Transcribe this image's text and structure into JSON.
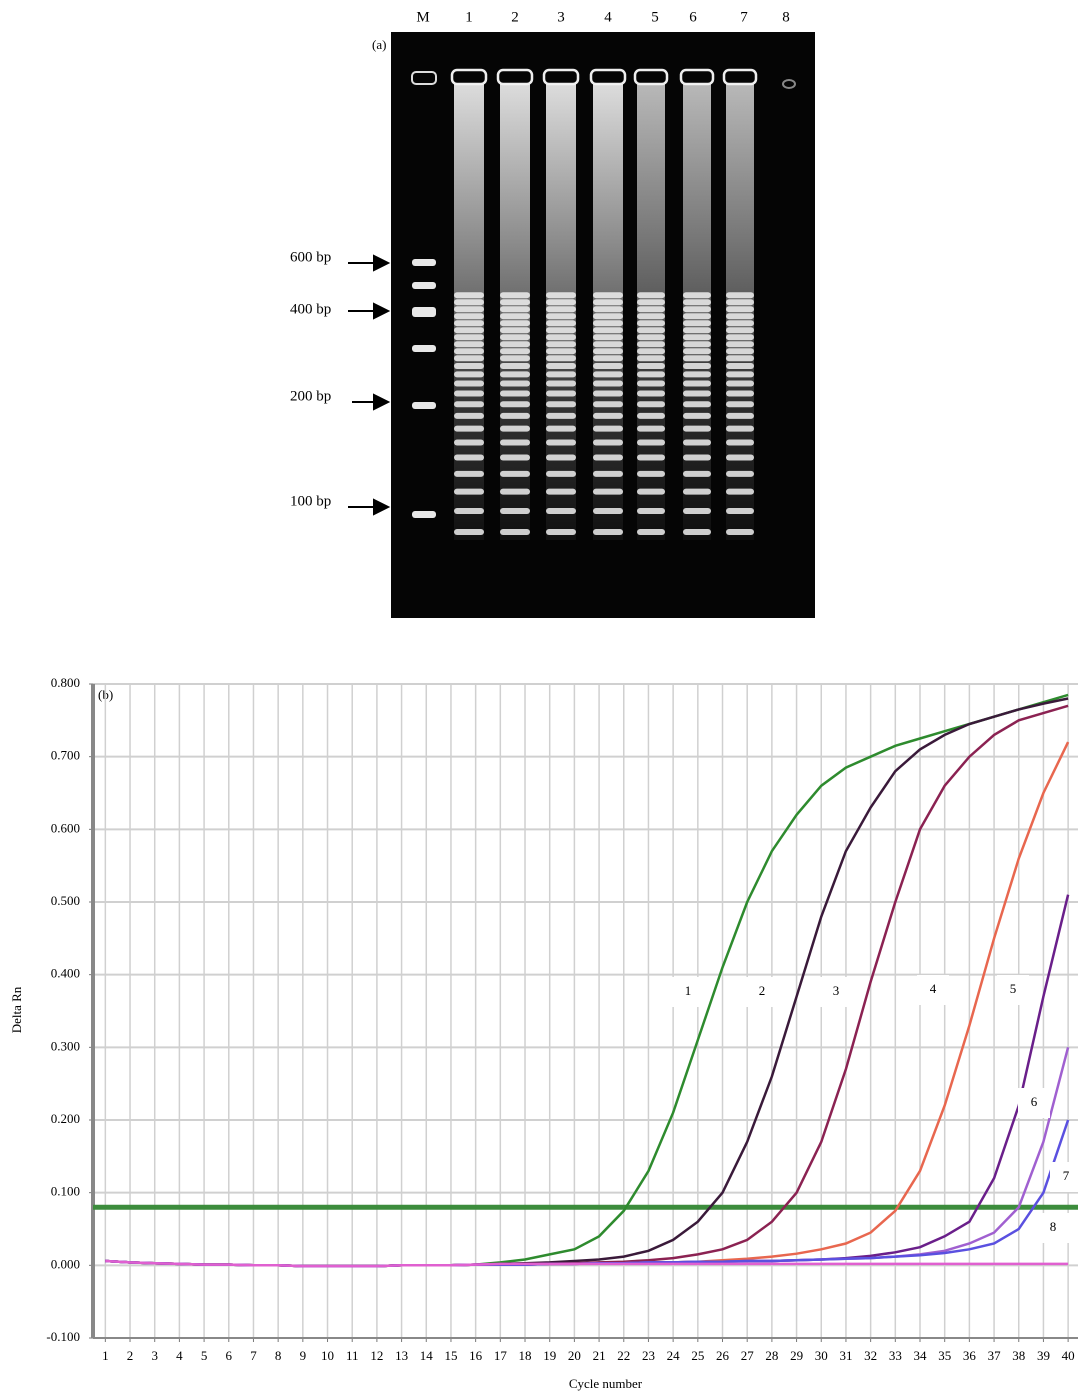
{
  "gel": {
    "panel_label": "(a)",
    "lanes": [
      "M",
      "1",
      "2",
      "3",
      "4",
      "5",
      "6",
      "7",
      "8"
    ],
    "markers": [
      "600 bp",
      "400 bp",
      "200 bp",
      "100 bp"
    ]
  },
  "chart_data": {
    "type": "line",
    "panel_label": "(b)",
    "x_label": "Cycle number",
    "y_label": "Delta Rn",
    "x": [
      1,
      2,
      3,
      4,
      5,
      6,
      7,
      8,
      9,
      10,
      11,
      12,
      13,
      14,
      15,
      16,
      17,
      18,
      19,
      20,
      21,
      22,
      23,
      24,
      25,
      26,
      27,
      28,
      29,
      30,
      31,
      32,
      33,
      34,
      35,
      36,
      37,
      38,
      39,
      40
    ],
    "xlim": [
      0.5,
      40.4
    ],
    "xticks": [
      1,
      2,
      3,
      4,
      5,
      6,
      7,
      8,
      9,
      10,
      11,
      12,
      13,
      14,
      15,
      16,
      17,
      18,
      19,
      20,
      21,
      22,
      23,
      24,
      25,
      26,
      27,
      28,
      29,
      30,
      31,
      32,
      33,
      34,
      35,
      36,
      37,
      38,
      39,
      40
    ],
    "ylim": [
      -0.1,
      0.8
    ],
    "yticks": [
      {
        "value": -0.1,
        "label": "-0.100"
      },
      {
        "value": 0,
        "label": "0.000"
      },
      {
        "value": 0.1,
        "label": "0.100"
      },
      {
        "value": 0.2,
        "label": "0.200"
      },
      {
        "value": 0.3,
        "label": "0.300"
      },
      {
        "value": 0.4,
        "label": "0.400"
      },
      {
        "value": 0.5,
        "label": "0.500"
      },
      {
        "value": 0.6,
        "label": "0.600"
      },
      {
        "value": 0.7,
        "label": "0.700"
      },
      {
        "value": 0.8,
        "label": "0.800"
      }
    ],
    "grid": true,
    "threshold": 0.08,
    "threshold_color": "#3c8c3c",
    "series": [
      {
        "name": "1",
        "color": "#2e8b2e",
        "values": [
          0.006,
          0.004,
          0.003,
          0.002,
          0.001,
          0.001,
          0,
          0,
          -0.001,
          -0.001,
          -0.001,
          -0.001,
          0,
          0,
          0,
          0.001,
          0.004,
          0.008,
          0.015,
          0.022,
          0.04,
          0.075,
          0.13,
          0.21,
          0.31,
          0.41,
          0.5,
          0.57,
          0.62,
          0.66,
          0.685,
          0.7,
          0.715,
          0.725,
          0.735,
          0.745,
          0.755,
          0.765,
          0.775,
          0.785
        ]
      },
      {
        "name": "2",
        "color": "#3a1a3a",
        "values": [
          0.006,
          0.004,
          0.003,
          0.002,
          0.001,
          0.001,
          0,
          0,
          -0.001,
          -0.001,
          -0.001,
          -0.001,
          0,
          0,
          0,
          0.001,
          0.002,
          0.003,
          0.004,
          0.006,
          0.008,
          0.012,
          0.02,
          0.035,
          0.06,
          0.1,
          0.17,
          0.26,
          0.37,
          0.48,
          0.57,
          0.63,
          0.68,
          0.71,
          0.73,
          0.745,
          0.755,
          0.765,
          0.773,
          0.78
        ]
      },
      {
        "name": "3",
        "color": "#8b2252",
        "values": [
          0.006,
          0.004,
          0.003,
          0.002,
          0.001,
          0.001,
          0,
          0,
          -0.001,
          -0.001,
          -0.001,
          -0.001,
          0,
          0,
          0,
          0.001,
          0.001,
          0.002,
          0.002,
          0.003,
          0.004,
          0.005,
          0.007,
          0.01,
          0.015,
          0.022,
          0.035,
          0.06,
          0.1,
          0.17,
          0.27,
          0.39,
          0.5,
          0.6,
          0.66,
          0.7,
          0.73,
          0.75,
          0.76,
          0.77
        ]
      },
      {
        "name": "4",
        "color": "#e8674f",
        "values": [
          0.006,
          0.004,
          0.003,
          0.002,
          0.001,
          0.001,
          0,
          0,
          -0.001,
          -0.001,
          -0.001,
          -0.001,
          0,
          0,
          0,
          0.001,
          0.001,
          0.001,
          0.002,
          0.002,
          0.003,
          0.003,
          0.004,
          0.004,
          0.005,
          0.007,
          0.009,
          0.012,
          0.016,
          0.022,
          0.03,
          0.045,
          0.075,
          0.13,
          0.22,
          0.33,
          0.45,
          0.56,
          0.65,
          0.72
        ]
      },
      {
        "name": "5",
        "color": "#6a1f8a",
        "values": [
          0.006,
          0.004,
          0.003,
          0.002,
          0.001,
          0.001,
          0,
          0,
          -0.001,
          -0.001,
          -0.001,
          -0.001,
          0,
          0,
          0,
          0.001,
          0.001,
          0.001,
          0.002,
          0.002,
          0.003,
          0.003,
          0.004,
          0.004,
          0.005,
          0.005,
          0.006,
          0.006,
          0.007,
          0.008,
          0.01,
          0.013,
          0.018,
          0.025,
          0.04,
          0.06,
          0.12,
          0.22,
          0.37,
          0.51
        ]
      },
      {
        "name": "6",
        "color": "#a060d0",
        "values": [
          0.006,
          0.004,
          0.003,
          0.002,
          0.001,
          0.001,
          0,
          0,
          -0.001,
          -0.001,
          -0.001,
          -0.001,
          0,
          0,
          0,
          0.001,
          0.001,
          0.001,
          0.002,
          0.002,
          0.003,
          0.003,
          0.004,
          0.004,
          0.005,
          0.005,
          0.006,
          0.006,
          0.007,
          0.008,
          0.009,
          0.01,
          0.012,
          0.015,
          0.02,
          0.03,
          0.045,
          0.08,
          0.17,
          0.3
        ]
      },
      {
        "name": "7",
        "color": "#5a50e0",
        "values": [
          0.006,
          0.004,
          0.003,
          0.002,
          0.001,
          0.001,
          0,
          0,
          -0.001,
          -0.001,
          -0.001,
          -0.001,
          0,
          0,
          0,
          0.001,
          0.001,
          0.001,
          0.002,
          0.002,
          0.003,
          0.003,
          0.004,
          0.004,
          0.005,
          0.005,
          0.006,
          0.006,
          0.007,
          0.008,
          0.009,
          0.01,
          0.012,
          0.014,
          0.017,
          0.022,
          0.03,
          0.05,
          0.1,
          0.2
        ]
      },
      {
        "name": "8",
        "color": "#e060d0",
        "values": [
          0.006,
          0.004,
          0.003,
          0.002,
          0.001,
          0.001,
          0,
          0,
          -0.001,
          -0.001,
          -0.001,
          -0.001,
          0,
          0,
          0,
          0.001,
          0.002,
          0.002,
          0.002,
          0.002,
          0.002,
          0.002,
          0.002,
          0.002,
          0.002,
          0.002,
          0.002,
          0.002,
          0.002,
          0.002,
          0.002,
          0.002,
          0.002,
          0.002,
          0.002,
          0.002,
          0.002,
          0.002,
          0.002,
          0.002
        ]
      }
    ]
  }
}
